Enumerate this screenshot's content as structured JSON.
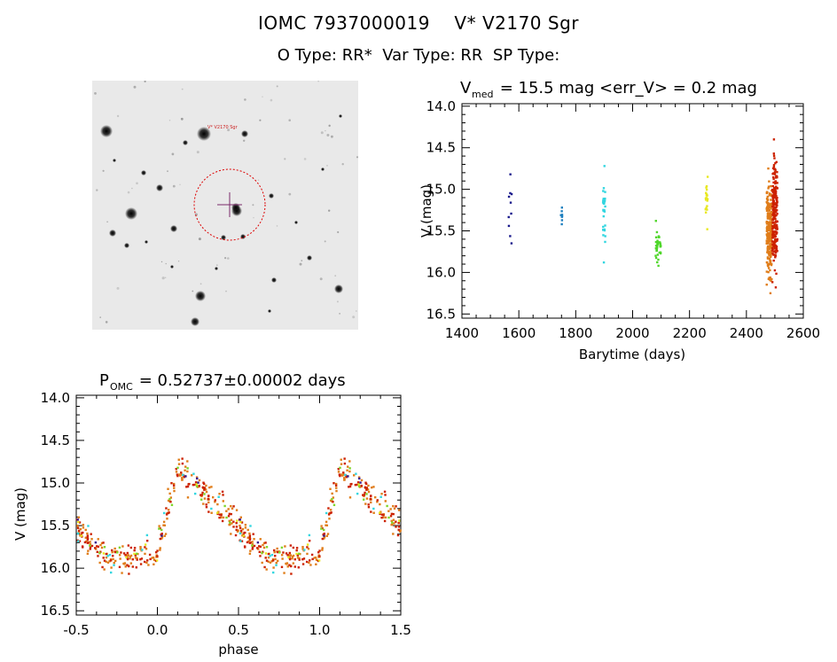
{
  "header": {
    "line1_id": "IOMC 7937000019",
    "line1_name": "V* V2170 Sgr",
    "line2_otype": "O Type: RR*",
    "line2_vartype": "Var Type: RR",
    "line2_sptype": "SP Type:"
  },
  "finder": {
    "label": "V* V2170 Sgr",
    "colors": {
      "circle": "#dd0000",
      "cross": "#7a2a6a",
      "text": "#cc2222",
      "corner_text": "#3344aa"
    }
  },
  "chart_data": [
    {
      "type": "scatter",
      "id": "light-curve",
      "title_main": "V",
      "title_sub": "med",
      "title_rest": " = 15.5 mag <err_V> = 0.2 mag",
      "xlabel": "Barytime (days)",
      "ylabel": "V (mag)",
      "xlim": [
        1400,
        2600
      ],
      "ylim": [
        16.55,
        13.97
      ],
      "xticks": [
        1400,
        1600,
        1800,
        2000,
        2200,
        2400,
        2600
      ],
      "yticks": [
        14.0,
        14.5,
        15.0,
        15.5,
        16.0,
        16.5
      ],
      "series": [
        {
          "name": "epoch-1570",
          "color": "#1a1a8c",
          "x_center": 1570,
          "x_spread": 6,
          "n": 10,
          "y_min": 14.82,
          "y_max": 15.65
        },
        {
          "name": "epoch-1750",
          "color": "#1e7fbf",
          "x_center": 1750,
          "x_spread": 3,
          "n": 8,
          "y_min": 15.22,
          "y_max": 15.42
        },
        {
          "name": "epoch-1900",
          "color": "#33d6e0",
          "x_center": 1900,
          "x_spread": 4,
          "n": 30,
          "y_min": 14.72,
          "y_max": 15.88
        },
        {
          "name": "epoch-2090",
          "color": "#4fd62a",
          "x_center": 2090,
          "x_spread": 9,
          "n": 40,
          "y_min": 15.38,
          "y_max": 15.92
        },
        {
          "name": "epoch-2260",
          "color": "#e8e820",
          "x_center": 2260,
          "x_spread": 4,
          "n": 20,
          "y_min": 14.85,
          "y_max": 15.48
        },
        {
          "name": "epoch-2480",
          "color": "#e07d1a",
          "x_center": 2480,
          "x_spread": 9,
          "n": 260,
          "y_min": 14.75,
          "y_max": 16.25
        },
        {
          "name": "epoch-2500",
          "color": "#cc2200",
          "x_center": 2500,
          "x_spread": 9,
          "n": 220,
          "y_min": 14.4,
          "y_max": 16.18
        }
      ]
    },
    {
      "type": "scatter",
      "id": "phased-curve",
      "title_main": "P",
      "title_sub": "OMC",
      "title_rest": " = 0.52737±0.00002 days",
      "xlabel": "phase",
      "ylabel": "V (mag)",
      "xlim": [
        -0.5,
        1.5
      ],
      "ylim": [
        16.55,
        13.97
      ],
      "xticks": [
        -0.5,
        0.0,
        0.5,
        1.0,
        1.5
      ],
      "yticks": [
        14.0,
        14.5,
        15.0,
        15.5,
        16.0,
        16.5
      ],
      "period_days": 0.52737,
      "model": {
        "min_mag": 15.85,
        "max_mag": 14.82,
        "phase_max": 0.13,
        "scatter": 0.14
      },
      "series": [
        {
          "name": "orange",
          "color": "#e07d1a",
          "n": 150
        },
        {
          "name": "red",
          "color": "#cc2200",
          "n": 130
        },
        {
          "name": "cyan",
          "color": "#33d6e0",
          "n": 15
        },
        {
          "name": "green",
          "color": "#7fd62a",
          "n": 18
        },
        {
          "name": "yellow",
          "color": "#e8e820",
          "n": 10
        },
        {
          "name": "purple",
          "color": "#3a1a8c",
          "n": 6
        }
      ]
    }
  ]
}
